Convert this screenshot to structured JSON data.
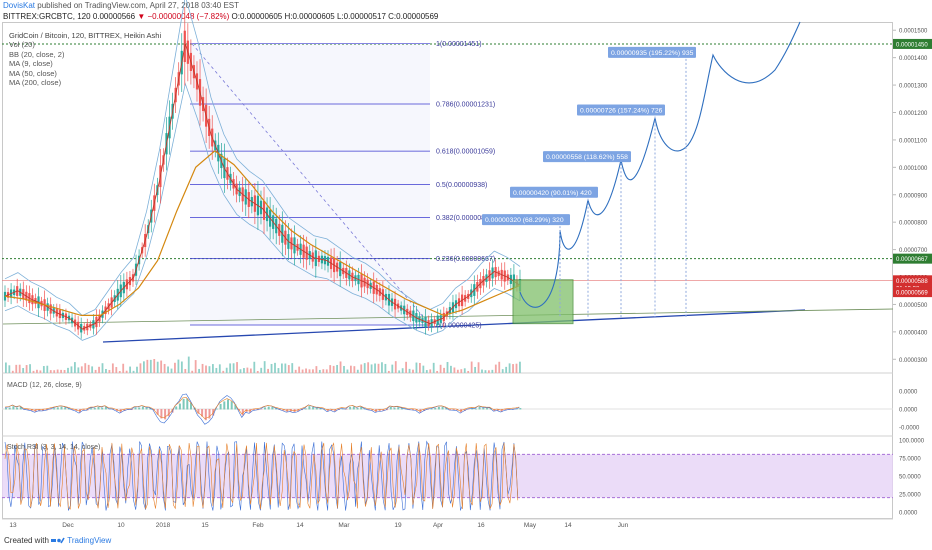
{
  "header": {
    "author": "DovisKat",
    "published": "published on TradingView.com, April 27, 2018 03:40 EST",
    "symbol": "BITTREX:GRCBTC, 120",
    "last": "0.00000566",
    "change": "▼ −0.00000048 (−7.82%)",
    "ohlc": "O:0.00000605 H:0.00000605 L:0.00000517 C:0.00000569"
  },
  "legend": {
    "title": "GridCoin / Bitcoin, 120, BITTREX, Heikin Ashi",
    "items": [
      "Vol (20)",
      "BB (20, close, 2)",
      "MA (9, close)",
      "MA (50, close)",
      "MA (200, close)"
    ]
  },
  "panes": {
    "macd_label": "MACD (12, 26, close, 9)",
    "stoch_label": "Stoch RSI (3, 3, 14, 14, close)"
  },
  "footer": {
    "created": "Created with",
    "brand": "TradingView"
  },
  "chart_data": [
    {
      "type": "line",
      "chart_style": "candlestick (Heikin Ashi) with fibonacci retracement and projection annotations",
      "title": "GridCoin / Bitcoin, 120, BITTREX, Heikin Ashi",
      "y_scale": "linear",
      "ylim": [
        2.5e-06,
        1.53e-05
      ],
      "y_ticks": [
        "0.0000300",
        "0.0000400",
        "0.0000500",
        "0.0000600",
        "0.0000700",
        "0.0000800",
        "0.0000900",
        "0.0001000",
        "0.0001100",
        "0.0001200",
        "0.0001300",
        "0.0001400",
        "0.0001500"
      ],
      "x_ticks": [
        "13",
        "Dec",
        "10",
        "2018",
        "15",
        "Feb",
        "14",
        "Mar",
        "19",
        "Apr",
        "16",
        "May",
        "14",
        "Jun"
      ],
      "price_path": {
        "name": "GRCBTC",
        "values": [
          5.3e-06,
          5.5e-06,
          5.2e-06,
          5e-06,
          4.7e-06,
          4.5e-06,
          4.1e-06,
          4.3e-06,
          4.9e-06,
          5.5e-06,
          6e-06,
          7.5e-06,
          9.5e-06,
          1.2e-05,
          1.45e-05,
          1.3e-05,
          1.12e-05,
          1e-05,
          9.2e-06,
          8.8e-06,
          8.5e-06,
          7.9e-06,
          7.3e-06,
          7e-06,
          6.7e-06,
          6.6e-06,
          6.3e-06,
          6e-06,
          5.8e-06,
          5.5e-06,
          5.1e-06,
          4.8e-06,
          4.5e-06,
          4.3e-06,
          4.5e-06,
          5e-06,
          5.3e-06,
          5.8e-06,
          6.2e-06,
          6e-06,
          5.7e-06
        ]
      },
      "ma50": {
        "name": "MA (50, close)",
        "values": [
          5.3e-06,
          5.2e-06,
          5e-06,
          4.8e-06,
          4.6e-06,
          4.6e-06,
          5e-06,
          5.6e-06,
          6.6e-06,
          8.4e-06,
          1e-05,
          1.06e-05,
          1.01e-05,
          9.3e-06,
          8.4e-06,
          7.7e-06,
          7.2e-06,
          6.8e-06,
          6.4e-06,
          6e-06,
          5.6e-06,
          5.2e-06,
          4.9e-06,
          4.6e-06,
          4.8e-06,
          5.1e-06,
          5.4e-06,
          5.7e-06
        ]
      },
      "trendlines": [
        {
          "name": "support",
          "from": [
            0.16,
            3.9e-06
          ],
          "to": [
            0.62,
            4.82e-06
          ]
        },
        {
          "name": "horizontal",
          "value": 6.67e-06
        }
      ],
      "fibonacci": [
        {
          "level": "1",
          "price": 1.451e-05,
          "label": "1(0.00001451)"
        },
        {
          "level": "0.786",
          "price": 1.231e-05,
          "label": "0.786(0.00001231)"
        },
        {
          "level": "0.618",
          "price": 1.059e-05,
          "label": "0.618(0.00001059)"
        },
        {
          "level": "0.5",
          "price": 9.38e-06,
          "label": "0.5(0.00000938)"
        },
        {
          "level": "0.382",
          "price": 8.17e-06,
          "label": "0.382(0.00000817)"
        },
        {
          "level": "0.236",
          "price": 6.67e-06,
          "label": "0.236(0.00000667)"
        },
        {
          "level": "0",
          "price": 4.25e-06,
          "label": "0(0.00000425)"
        }
      ],
      "projections": [
        {
          "label": "0.00000320 (68.29%) 320",
          "price": 8e-06
        },
        {
          "label": "0.00000420 (90.01%) 420",
          "price": 9e-06
        },
        {
          "label": "0.00000558 (118.62%) 558",
          "price": 1.03e-05
        },
        {
          "label": "0.00000726 (157.24%) 726",
          "price": 1.2e-05
        },
        {
          "label": "0.00000935 (195.22%) 935",
          "price": 1.41e-05
        }
      ],
      "price_badges": [
        {
          "text": "0.00001450",
          "price": 1.45e-05,
          "color": "#2e7d32"
        },
        {
          "text": "0.00000667",
          "price": 6.67e-06,
          "color": "#2e7d32"
        },
        {
          "text": "0.00000588",
          "price": 5.88e-06,
          "color": "#d32f2f"
        },
        {
          "text": "01:19:38",
          "price": 5.6e-06,
          "color": "#d32f2f"
        },
        {
          "text": "0.00000569",
          "price": 5.45e-06,
          "color": "#d32f2f"
        }
      ]
    },
    {
      "type": "line",
      "title": "MACD (12, 26, close, 9)",
      "ylim": [
        -1.5e-06,
        1.5e-06
      ],
      "y_ticks": [
        "0.0000",
        "0.0000",
        "-0.0000"
      ]
    },
    {
      "type": "line",
      "title": "Stoch RSI (3, 3, 14, 14, close)",
      "ylim": [
        0,
        100
      ],
      "y_ticks": [
        "100.0000",
        "75.0000",
        "50.0000",
        "25.0000",
        "0.0000"
      ],
      "bands": [
        20,
        80
      ]
    }
  ],
  "colors": {
    "bull": "#26a69a",
    "bear": "#ef5350",
    "ma9": "#c0392b",
    "ma50": "#d4880f",
    "bb": "#7db0d8",
    "fib": "#3a3ad0",
    "projection": "#2f6fbf",
    "stoch_band": "#e6d3f6"
  }
}
